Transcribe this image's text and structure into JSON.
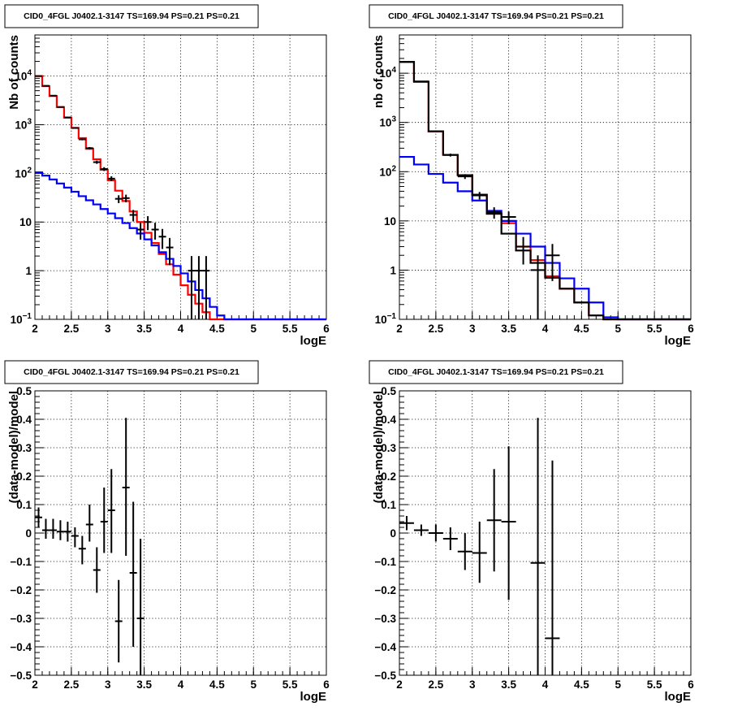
{
  "chart_data": [
    {
      "type": "line",
      "title": "CID0_4FGL J0402.1-3147 TS=169.94 PS=0.21 PS=0.21",
      "xlabel": "logE",
      "ylabel": "Nb of counts",
      "xlim": [
        2,
        6
      ],
      "ylim": [
        0.1,
        70000
      ],
      "log_y": true,
      "grid": true,
      "x_ticks": [
        2,
        2.5,
        3,
        3.5,
        4,
        4.5,
        5,
        5.5,
        6
      ],
      "x_tick_labels": [
        "2",
        "2.5",
        "3",
        "3.5",
        "4",
        "4.5",
        "5",
        "5.5",
        "6"
      ],
      "y_ticks": [
        0.1,
        1,
        10,
        100,
        1000,
        10000
      ],
      "y_tick_labels": [
        "10^-1",
        "1",
        "10",
        "10^2",
        "10^3",
        "10^4"
      ],
      "bin_edges": [
        2,
        2.1,
        2.2,
        2.3,
        2.4,
        2.5,
        2.6,
        2.7,
        2.8,
        2.9,
        3,
        3.1,
        3.2,
        3.3,
        3.4,
        3.5,
        3.6,
        3.7,
        3.8,
        3.9,
        4,
        4.1,
        4.2,
        4.3,
        4.4,
        4.5,
        4.6,
        4.7,
        4.8,
        4.9,
        5,
        5.1,
        5.2,
        5.3,
        5.4,
        5.5,
        5.6,
        5.7,
        5.8,
        5.9,
        6
      ],
      "series": [
        {
          "color": "#ff0000",
          "values": [
            10000,
            6200,
            3900,
            2300,
            1400,
            860,
            530,
            320,
            195,
            118,
            72,
            44,
            27,
            16.5,
            10,
            6,
            3.7,
            2.2,
            1.35,
            0.83,
            0.5,
            0.32,
            0.21,
            0.14,
            0.1,
            0.1,
            0.1,
            0.1,
            0.1,
            0.1,
            0.1,
            0.1,
            0.1,
            0.1,
            0.1,
            0.1,
            0.1,
            0.1,
            0.1,
            0.1
          ]
        },
        {
          "color": "#0000ff",
          "values": [
            105,
            90,
            75,
            62,
            51,
            42,
            34,
            28,
            23,
            18.5,
            15,
            12,
            9.5,
            7.5,
            5.8,
            4.4,
            3.3,
            2.4,
            1.75,
            1.25,
            0.88,
            0.6,
            0.4,
            0.27,
            0.18,
            0.12,
            0.1,
            0.1,
            0.1,
            0.1,
            0.1,
            0.1,
            0.1,
            0.1,
            0.1,
            0.1,
            0.1,
            0.1,
            0.1,
            0.1
          ]
        }
      ],
      "points": [
        {
          "x": 2.05,
          "y": 10000,
          "ylow": 9800,
          "yhigh": 10200,
          "xerr": 0.05
        },
        {
          "x": 2.15,
          "y": 6300,
          "ylow": 6220,
          "yhigh": 6380,
          "xerr": 0.05
        },
        {
          "x": 2.25,
          "y": 3950,
          "ylow": 3880,
          "yhigh": 4020,
          "xerr": 0.05
        },
        {
          "x": 2.35,
          "y": 2310,
          "ylow": 2260,
          "yhigh": 2360,
          "xerr": 0.05
        },
        {
          "x": 2.45,
          "y": 1410,
          "ylow": 1370,
          "yhigh": 1450,
          "xerr": 0.05
        },
        {
          "x": 2.55,
          "y": 855,
          "ylow": 826,
          "yhigh": 884,
          "xerr": 0.05
        },
        {
          "x": 2.65,
          "y": 500,
          "ylow": 478,
          "yhigh": 522,
          "xerr": 0.05
        },
        {
          "x": 2.75,
          "y": 330,
          "ylow": 312,
          "yhigh": 348,
          "xerr": 0.05
        },
        {
          "x": 2.85,
          "y": 170,
          "ylow": 157,
          "yhigh": 183,
          "xerr": 0.05
        },
        {
          "x": 2.95,
          "y": 123,
          "ylow": 112,
          "yhigh": 134,
          "xerr": 0.05
        },
        {
          "x": 3.05,
          "y": 78,
          "ylow": 69,
          "yhigh": 87,
          "xerr": 0.05
        },
        {
          "x": 3.15,
          "y": 30,
          "ylow": 24.5,
          "yhigh": 35.5,
          "xerr": 0.05
        },
        {
          "x": 3.25,
          "y": 31,
          "ylow": 25.5,
          "yhigh": 36.5,
          "xerr": 0.05
        },
        {
          "x": 3.35,
          "y": 14,
          "ylow": 10.3,
          "yhigh": 17.7,
          "xerr": 0.05
        },
        {
          "x": 3.45,
          "y": 7,
          "ylow": 4.35,
          "yhigh": 9.65,
          "xerr": 0.05
        },
        {
          "x": 3.55,
          "y": 10,
          "ylow": 6.8,
          "yhigh": 13.2,
          "xerr": 0.05
        },
        {
          "x": 3.65,
          "y": 7,
          "ylow": 4.35,
          "yhigh": 9.65,
          "xerr": 0.05
        },
        {
          "x": 3.75,
          "y": 5,
          "ylow": 2.8,
          "yhigh": 7.2,
          "xerr": 0.05
        },
        {
          "x": 3.85,
          "y": 3,
          "ylow": 1.3,
          "yhigh": 4.7,
          "xerr": 0.05
        },
        {
          "x": 4.15,
          "y": 1,
          "ylow": 0.1,
          "yhigh": 2,
          "xerr": 0.05
        },
        {
          "x": 4.25,
          "y": 1,
          "ylow": 0.1,
          "yhigh": 2,
          "xerr": 0.05
        },
        {
          "x": 4.35,
          "y": 1,
          "ylow": 0.1,
          "yhigh": 2,
          "xerr": 0.05
        }
      ]
    },
    {
      "type": "line",
      "title": "CID0_4FGL J0402.1-3147 TS=169.94 PS=0.21 PS=0.21",
      "xlabel": "logE",
      "ylabel": "nb of counts",
      "xlim": [
        2,
        6
      ],
      "ylim": [
        0.1,
        60000
      ],
      "log_y": true,
      "grid": true,
      "x_ticks": [
        2,
        2.5,
        3,
        3.5,
        4,
        4.5,
        5,
        5.5,
        6
      ],
      "x_tick_labels": [
        "2",
        "2.5",
        "3",
        "3.5",
        "4",
        "4.5",
        "5",
        "5.5",
        "6"
      ],
      "y_ticks": [
        0.1,
        1,
        10,
        100,
        1000,
        10000
      ],
      "y_tick_labels": [
        "10^-1",
        "1",
        "10",
        "10^2",
        "10^3",
        "10^4"
      ],
      "bin_edges": [
        2,
        2.2,
        2.4,
        2.6,
        2.8,
        3,
        3.2,
        3.4,
        3.6,
        3.8,
        4,
        4.2,
        4.4,
        4.6,
        4.8,
        5,
        5.2,
        5.4,
        5.6,
        5.8,
        6
      ],
      "series": [
        {
          "color": "#ff0000",
          "values": [
            17000,
            6700,
            660,
            220,
            85,
            34,
            14,
            9,
            3,
            1.6,
            0.75,
            0.42,
            0.22,
            0.12,
            0.1,
            0.1,
            0.1,
            0.1,
            0.1,
            0.1
          ]
        },
        {
          "color": "#0000ff",
          "values": [
            200,
            140,
            90,
            60,
            40,
            26,
            16,
            10,
            5.5,
            3,
            1.4,
            0.68,
            0.42,
            0.22,
            0.11,
            0.1,
            0.1,
            0.1,
            0.1,
            0.1
          ]
        },
        {
          "color": "#000000",
          "values": [
            17000,
            6750,
            660,
            220,
            85,
            34,
            14,
            5.5,
            2.5,
            1.4,
            0.7,
            0.42,
            0.22,
            0.12,
            0.1,
            0.1,
            0.1,
            0.1,
            0.1,
            0.1
          ]
        }
      ],
      "points": [
        {
          "x": 2.1,
          "y": 17000,
          "ylow": 16700,
          "yhigh": 17300,
          "xerr": 0.1
        },
        {
          "x": 2.3,
          "y": 6800,
          "ylow": 6640,
          "yhigh": 6960,
          "xerr": 0.1
        },
        {
          "x": 2.5,
          "y": 665,
          "ylow": 640,
          "yhigh": 690,
          "xerr": 0.1
        },
        {
          "x": 2.7,
          "y": 218,
          "ylow": 203,
          "yhigh": 233,
          "xerr": 0.1
        },
        {
          "x": 2.9,
          "y": 80,
          "ylow": 71,
          "yhigh": 89,
          "xerr": 0.1
        },
        {
          "x": 3.1,
          "y": 33,
          "ylow": 27.3,
          "yhigh": 38.7,
          "xerr": 0.1
        },
        {
          "x": 3.3,
          "y": 15,
          "ylow": 11.1,
          "yhigh": 18.9,
          "xerr": 0.1
        },
        {
          "x": 3.5,
          "y": 12,
          "ylow": 8.5,
          "yhigh": 15.5,
          "xerr": 0.1
        },
        {
          "x": 3.7,
          "y": 3,
          "ylow": 1.3,
          "yhigh": 4.7,
          "xerr": 0.1
        },
        {
          "x": 3.9,
          "y": 1,
          "ylow": 0.1,
          "yhigh": 2,
          "xerr": 0.1
        },
        {
          "x": 4.1,
          "y": 2,
          "ylow": 0.6,
          "yhigh": 3.4,
          "xerr": 0.1
        }
      ]
    },
    {
      "type": "scatter",
      "title": "CID0_4FGL J0402.1-3147 TS=169.94 PS=0.21 PS=0.21",
      "xlabel": "logE",
      "ylabel": "(data-model)/model",
      "xlim": [
        2,
        6
      ],
      "ylim": [
        -0.5,
        0.5
      ],
      "grid": true,
      "x_ticks": [
        2,
        2.5,
        3,
        3.5,
        4,
        4.5,
        5,
        5.5,
        6
      ],
      "x_tick_labels": [
        "2",
        "2.5",
        "3",
        "3.5",
        "4",
        "4.5",
        "5",
        "5.5",
        "6"
      ],
      "y_ticks": [
        -0.5,
        -0.4,
        -0.3,
        -0.2,
        -0.1,
        0,
        0.1,
        0.2,
        0.3,
        0.4,
        0.5
      ],
      "y_tick_labels": [
        "−0.5",
        "−0.4",
        "−0.3",
        "−0.2",
        "−0.1",
        "0",
        "0.1",
        "0.2",
        "0.3",
        "0.4",
        "0.5"
      ],
      "points": [
        {
          "x": 2.05,
          "y": 0.055,
          "ylow": 0.02,
          "yhigh": 0.09,
          "xerr": 0.05
        },
        {
          "x": 2.15,
          "y": 0.01,
          "ylow": -0.02,
          "yhigh": 0.05,
          "xerr": 0.05
        },
        {
          "x": 2.25,
          "y": 0.01,
          "ylow": -0.02,
          "yhigh": 0.05,
          "xerr": 0.05
        },
        {
          "x": 2.35,
          "y": 0.005,
          "ylow": -0.025,
          "yhigh": 0.045,
          "xerr": 0.05
        },
        {
          "x": 2.45,
          "y": 0.005,
          "ylow": -0.03,
          "yhigh": 0.04,
          "xerr": 0.05
        },
        {
          "x": 2.55,
          "y": -0.01,
          "ylow": -0.05,
          "yhigh": 0.02,
          "xerr": 0.05
        },
        {
          "x": 2.65,
          "y": -0.055,
          "ylow": -0.11,
          "yhigh": -0.01,
          "xerr": 0.05
        },
        {
          "x": 2.75,
          "y": 0.03,
          "ylow": -0.03,
          "yhigh": 0.1,
          "xerr": 0.05
        },
        {
          "x": 2.85,
          "y": -0.13,
          "ylow": -0.21,
          "yhigh": -0.05,
          "xerr": 0.05
        },
        {
          "x": 2.95,
          "y": 0.04,
          "ylow": -0.07,
          "yhigh": 0.16,
          "xerr": 0.05
        },
        {
          "x": 3.05,
          "y": 0.08,
          "ylow": -0.07,
          "yhigh": 0.225,
          "xerr": 0.05
        },
        {
          "x": 3.15,
          "y": -0.31,
          "ylow": -0.455,
          "yhigh": -0.165,
          "xerr": 0.05
        },
        {
          "x": 3.25,
          "y": 0.16,
          "ylow": -0.08,
          "yhigh": 0.405,
          "xerr": 0.05
        },
        {
          "x": 3.35,
          "y": -0.14,
          "ylow": -0.4,
          "yhigh": 0.11,
          "xerr": 0.05
        },
        {
          "x": 3.45,
          "y": -0.3,
          "ylow": -0.5,
          "yhigh": -0.02,
          "xerr": 0.05
        }
      ]
    },
    {
      "type": "scatter",
      "title": "CID0_4FGL J0402.1-3147 TS=169.94 PS=0.21 PS=0.21",
      "xlabel": "logE",
      "ylabel": "(data-model)/model",
      "xlim": [
        2,
        6
      ],
      "ylim": [
        -0.5,
        0.5
      ],
      "grid": true,
      "x_ticks": [
        2,
        2.5,
        3,
        3.5,
        4,
        4.5,
        5,
        5.5,
        6
      ],
      "x_tick_labels": [
        "2",
        "2.5",
        "3",
        "3.5",
        "4",
        "4.5",
        "5",
        "5.5",
        "6"
      ],
      "y_ticks": [
        -0.5,
        -0.4,
        -0.3,
        -0.2,
        -0.1,
        0,
        0.1,
        0.2,
        0.3,
        0.4,
        0.5
      ],
      "y_tick_labels": [
        "−0.5",
        "−0.4",
        "−0.3",
        "−0.2",
        "−0.1",
        "0",
        "0.1",
        "0.2",
        "0.3",
        "0.4",
        "0.5"
      ],
      "points": [
        {
          "x": 2.1,
          "y": 0.035,
          "ylow": 0.01,
          "yhigh": 0.06,
          "xerr": 0.1
        },
        {
          "x": 2.3,
          "y": 0.01,
          "ylow": -0.01,
          "yhigh": 0.03,
          "xerr": 0.1
        },
        {
          "x": 2.5,
          "y": 0.0,
          "ylow": -0.03,
          "yhigh": 0.03,
          "xerr": 0.1
        },
        {
          "x": 2.7,
          "y": -0.02,
          "ylow": -0.06,
          "yhigh": 0.02,
          "xerr": 0.1
        },
        {
          "x": 2.9,
          "y": -0.065,
          "ylow": -0.13,
          "yhigh": 0.0,
          "xerr": 0.1
        },
        {
          "x": 3.1,
          "y": -0.07,
          "ylow": -0.175,
          "yhigh": 0.04,
          "xerr": 0.1
        },
        {
          "x": 3.3,
          "y": 0.045,
          "ylow": -0.135,
          "yhigh": 0.225,
          "xerr": 0.1
        },
        {
          "x": 3.5,
          "y": 0.04,
          "ylow": -0.235,
          "yhigh": 0.305,
          "xerr": 0.1
        },
        {
          "x": 3.9,
          "y": -0.105,
          "ylow": -0.5,
          "yhigh": 0.405,
          "xerr": 0.1
        },
        {
          "x": 4.1,
          "y": -0.37,
          "ylow": -0.5,
          "yhigh": 0.255,
          "xerr": 0.1
        }
      ]
    }
  ]
}
